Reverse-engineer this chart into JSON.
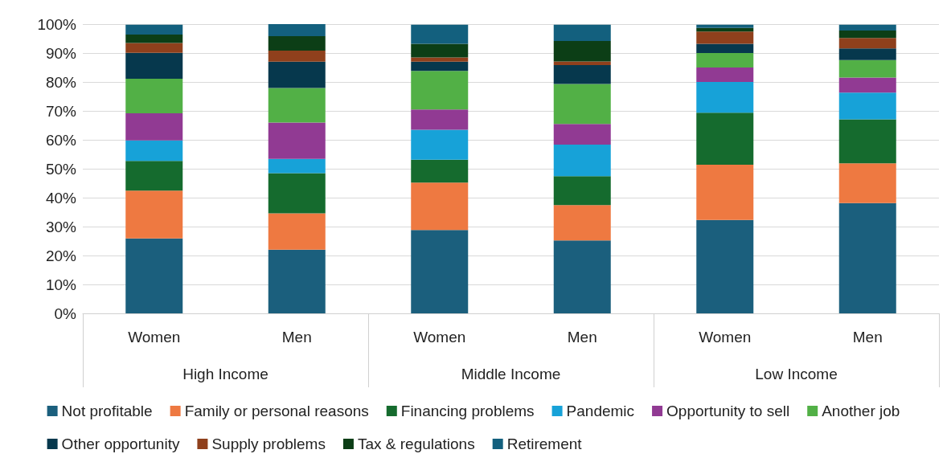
{
  "chart_data": {
    "type": "bar",
    "stacked": true,
    "categories": [
      "Women",
      "Men",
      "Women",
      "Men",
      "Women",
      "Men"
    ],
    "annotations": [
      "High Income",
      "Middle Income",
      "Low Income"
    ],
    "ylim": [
      0,
      100
    ],
    "yticks": [
      {
        "value": 0,
        "label": "0%"
      },
      {
        "value": 10,
        "label": "10%"
      },
      {
        "value": 20,
        "label": "20%"
      },
      {
        "value": 30,
        "label": "30%"
      },
      {
        "value": 40,
        "label": "40%"
      },
      {
        "value": 50,
        "label": "50%"
      },
      {
        "value": 60,
        "label": "60%"
      },
      {
        "value": 70,
        "label": "70%"
      },
      {
        "value": 80,
        "label": "80%"
      },
      {
        "value": 90,
        "label": "90%"
      },
      {
        "value": 100,
        "label": "100%"
      }
    ],
    "grid": "y",
    "legend": "bottom",
    "series": [
      {
        "name": "Not profitable",
        "color": "#1b5f7d",
        "values": [
          25.9,
          22.0,
          28.8,
          25.2,
          32.3,
          38.1
        ]
      },
      {
        "name": "Family or personal reasons",
        "color": "#ee7941",
        "values": [
          16.5,
          12.6,
          16.4,
          12.2,
          19.1,
          13.8
        ]
      },
      {
        "name": "Financing problems",
        "color": "#156b2e",
        "values": [
          10.3,
          13.9,
          7.9,
          10.0,
          18.0,
          15.2
        ]
      },
      {
        "name": "Pandemic",
        "color": "#17a2d8",
        "values": [
          7.1,
          4.9,
          10.4,
          10.9,
          10.6,
          9.2
        ]
      },
      {
        "name": "Opportunity to sell",
        "color": "#913a93",
        "values": [
          9.4,
          12.6,
          7.0,
          7.2,
          5.0,
          5.2
        ]
      },
      {
        "name": "Another job",
        "color": "#52b046",
        "values": [
          11.9,
          11.9,
          13.3,
          13.8,
          5.0,
          6.1
        ]
      },
      {
        "name": "Other opportunity",
        "color": "#06384d",
        "values": [
          9.0,
          9.1,
          3.2,
          6.5,
          3.2,
          4.0
        ]
      },
      {
        "name": "Supply problems",
        "color": "#8f401c",
        "values": [
          3.4,
          3.8,
          1.5,
          1.3,
          4.2,
          3.6
        ]
      },
      {
        "name": "Tax & regulations",
        "color": "#0c3e16",
        "values": [
          2.9,
          5.0,
          4.7,
          7.1,
          1.3,
          2.6
        ]
      },
      {
        "name": "Retirement",
        "color": "#13607e",
        "values": [
          3.4,
          4.2,
          6.6,
          5.6,
          1.1,
          2.0
        ]
      }
    ]
  }
}
